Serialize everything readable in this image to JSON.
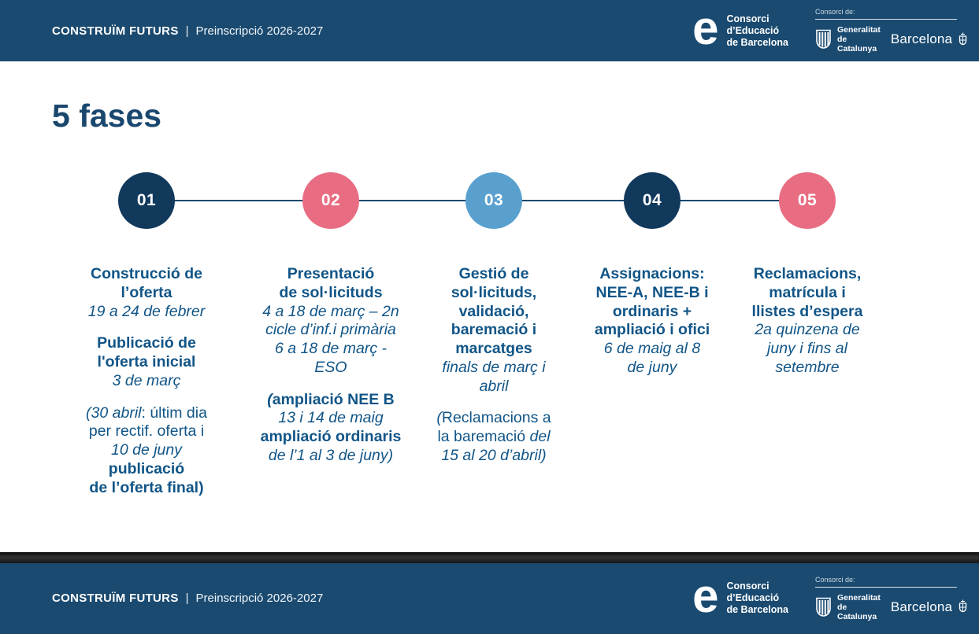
{
  "header": {
    "brand": "CONSTRUÏM FUTURS",
    "divider": "|",
    "subtitle": "Preinscripció 2026-2027",
    "consorci": {
      "logo_glyph": "e",
      "name_lines": [
        "Consorci",
        "d’Educació",
        "de Barcelona"
      ]
    },
    "partner": {
      "caption": "Consorci de:",
      "generalitat_line1": "Generalitat",
      "generalitat_line2": "de Catalunya",
      "barcelona": "Barcelona"
    }
  },
  "slide": {
    "title": "5 fases"
  },
  "colors": {
    "bar_background": "#1A4A70",
    "navy_circle": "#11395C",
    "pink_circle": "#E96D82",
    "blue_circle": "#59A0CF",
    "timeline_line": "#1A4A70",
    "body_text": "#115587",
    "title_text": "#1A476E"
  },
  "phases": [
    {
      "number": "01",
      "color": "#11395C",
      "paragraphs": [
        [
          {
            "t": "Construcció de\nl’oferta",
            "s": "b"
          },
          {
            "t": "\n19 a 24 de febrer",
            "s": "i"
          }
        ],
        [
          {
            "t": "Publicació de\nl'oferta inicial",
            "s": "b"
          },
          {
            "t": "\n3 de març",
            "s": "i"
          }
        ],
        [
          {
            "t": "(30 abril",
            "s": "i"
          },
          {
            "t": ": últim dia\nper rectif. oferta i\n",
            "s": "r"
          },
          {
            "t": "10 de juny",
            "s": "i"
          },
          {
            "t": "\n",
            "s": "r"
          },
          {
            "t": "publicació\nde l’oferta final)",
            "s": "b"
          }
        ]
      ]
    },
    {
      "number": "02",
      "color": "#E96D82",
      "paragraphs": [
        [
          {
            "t": "Presentació\nde sol·licituds",
            "s": "b"
          },
          {
            "t": "\n4 a 18 de març – 2n\ncicle d’inf.i primària\n6 a 18 de març -\nESO",
            "s": "i"
          }
        ],
        [
          {
            "t": "(",
            "s": "bi"
          },
          {
            "t": "ampliació NEE B",
            "s": "b"
          },
          {
            "t": "\n",
            "s": "r"
          },
          {
            "t": "13 i 14 de maig",
            "s": "i"
          },
          {
            "t": "\n",
            "s": "r"
          },
          {
            "t": "ampliació ordinaris",
            "s": "b"
          },
          {
            "t": "\nde l’1 al 3 de juny)",
            "s": "i"
          }
        ]
      ]
    },
    {
      "number": "03",
      "color": "#59A0CF",
      "paragraphs": [
        [
          {
            "t": "Gestió de\nsol·licituds,\nvalidació,\nbaremació i\nmarcatges",
            "s": "b"
          },
          {
            "t": "\nfinals de març i\nabril",
            "s": "i"
          }
        ],
        [
          {
            "t": "(",
            "s": "i"
          },
          {
            "t": "Reclamacions a\nla baremació ",
            "s": "r"
          },
          {
            "t": "del\n15 al 20 d’abril)",
            "s": "i"
          }
        ]
      ]
    },
    {
      "number": "04",
      "color": "#11395C",
      "paragraphs": [
        [
          {
            "t": "Assignacions:\nNEE-A, NEE-B i\nordinaris +\nampliació i ofici",
            "s": "b"
          },
          {
            "t": "\n6 de maig al 8\nde juny",
            "s": "i"
          }
        ]
      ]
    },
    {
      "number": "05",
      "color": "#E96D82",
      "paragraphs": [
        [
          {
            "t": "Reclamacions,\nmatrícula i\nllistes d’espera",
            "s": "b"
          },
          {
            "t": "\n2a quinzena de\njuny i fins al\nsetembre",
            "s": "i"
          }
        ]
      ]
    }
  ]
}
